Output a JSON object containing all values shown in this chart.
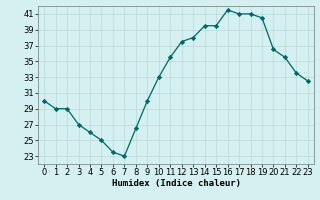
{
  "x": [
    0,
    1,
    2,
    3,
    4,
    5,
    6,
    7,
    8,
    9,
    10,
    11,
    12,
    13,
    14,
    15,
    16,
    17,
    18,
    19,
    20,
    21,
    22,
    23
  ],
  "y": [
    30,
    29,
    29,
    27,
    26,
    25,
    23.5,
    23,
    26.5,
    30,
    33,
    35.5,
    37.5,
    38,
    39.5,
    39.5,
    41.5,
    41,
    41,
    40.5,
    36.5,
    35.5,
    33.5,
    32.5
  ],
  "xlabel": "Humidex (Indice chaleur)",
  "xlim": [
    -0.5,
    23.5
  ],
  "ylim": [
    22,
    42
  ],
  "yticks": [
    23,
    25,
    27,
    29,
    31,
    33,
    35,
    37,
    39,
    41
  ],
  "xticks": [
    0,
    1,
    2,
    3,
    4,
    5,
    6,
    7,
    8,
    9,
    10,
    11,
    12,
    13,
    14,
    15,
    16,
    17,
    18,
    19,
    20,
    21,
    22,
    23
  ],
  "line_color": "#006666",
  "marker": "D",
  "marker_size": 2.2,
  "bg_color": "#d4f0f0",
  "grid_color": "#b8d8d8",
  "label_fontsize": 6.5,
  "tick_fontsize": 6.0
}
